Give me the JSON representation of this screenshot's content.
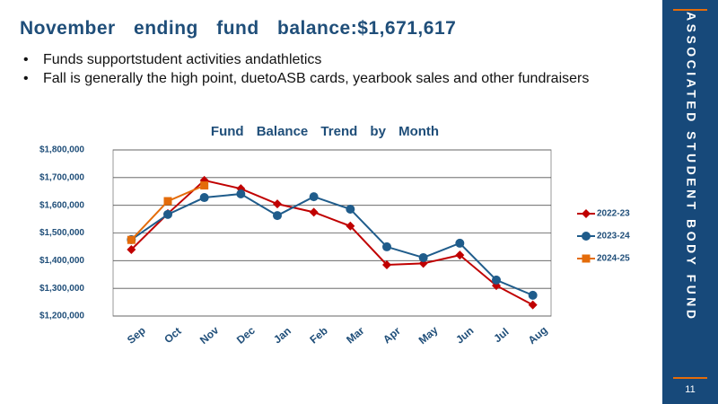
{
  "header": {
    "title": "November ending fund balance:$1,671,617"
  },
  "bullets": [
    "Funds supportstudent activities andathletics",
    "Fall is generally the high point, duetoASB cards, yearbook sales and other fundraisers"
  ],
  "sidebar": {
    "label": "ASSOCIATED STUDENT BODY FUND",
    "page_number": "11"
  },
  "chart_data": {
    "type": "line",
    "title": "Fund Balance Trend by Month",
    "categories": [
      "Sep",
      "Oct",
      "Nov",
      "Dec",
      "Jan",
      "Feb",
      "Mar",
      "Apr",
      "May",
      "Jun",
      "Jul",
      "Aug"
    ],
    "series": [
      {
        "name": "2022-23",
        "color": "#c00000",
        "marker": "diamond",
        "values": [
          1440000,
          1570000,
          1690000,
          1660000,
          1605000,
          1575000,
          1525000,
          1385000,
          1390000,
          1420000,
          1310000,
          1240000
        ]
      },
      {
        "name": "2023-24",
        "color": "#1f5c8b",
        "marker": "circle",
        "values": [
          1476000,
          1567000,
          1628000,
          1641000,
          1563000,
          1631000,
          1586000,
          1450000,
          1411000,
          1463000,
          1330000,
          1275000
        ]
      },
      {
        "name": "2024-25",
        "color": "#e46c0a",
        "marker": "square",
        "values": [
          1475000,
          1615000,
          1671617,
          null,
          null,
          null,
          null,
          null,
          null,
          null,
          null,
          null
        ]
      }
    ],
    "ylim": [
      1200000,
      1800000
    ],
    "yticks": [
      {
        "value": 1200000,
        "label": "$1,200,000"
      },
      {
        "value": 1300000,
        "label": "$1,300,000"
      },
      {
        "value": 1400000,
        "label": "$1,400,000"
      },
      {
        "value": 1500000,
        "label": "$1,500,000"
      },
      {
        "value": 1600000,
        "label": "$1,600,000"
      },
      {
        "value": 1700000,
        "label": "$1,700,000"
      },
      {
        "value": 1800000,
        "label": "$1,800,000"
      }
    ],
    "grid": true,
    "legend": "right"
  }
}
